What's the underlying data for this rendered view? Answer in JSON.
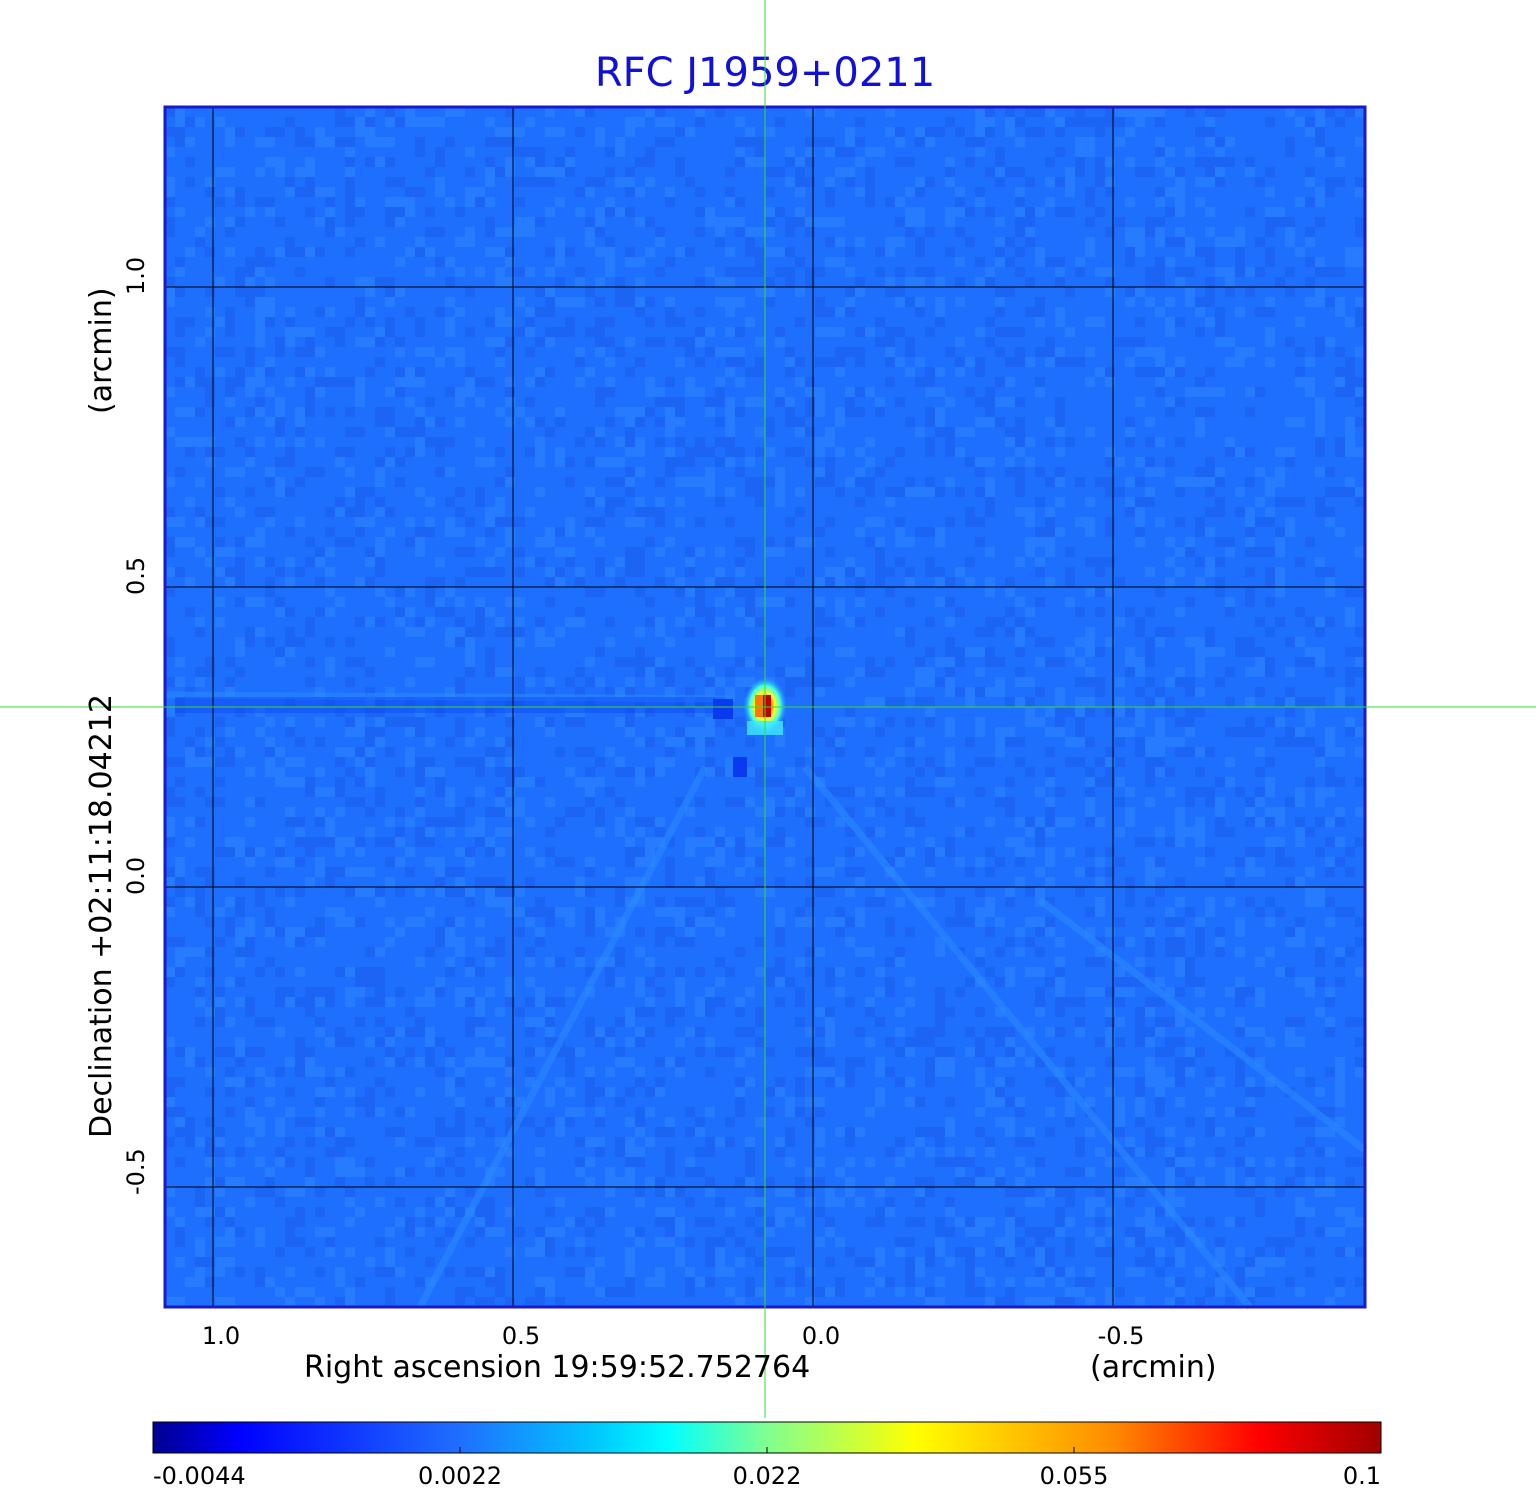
{
  "chart_data": {
    "type": "heatmap",
    "title": "RFC J1959+0211",
    "xlabel": "Right ascension  19:59:52.752764",
    "xunit": "(arcmin)",
    "ylabel": "Declination  +02:11:18.04212",
    "yunit": "(arcmin)",
    "x_ticks": [
      "1.0",
      "0.5",
      "0.0",
      "-0.5"
    ],
    "y_ticks": [
      "1.0",
      "0.5",
      "0.0",
      "-0.5"
    ],
    "x_tick_values": [
      1.0,
      0.5,
      0.0,
      -0.5
    ],
    "y_tick_values": [
      1.0,
      0.5,
      0.0,
      -0.5
    ],
    "xlim": [
      1.08,
      -0.92
    ],
    "ylim": [
      -0.7,
      1.3
    ],
    "grid": true,
    "crosshair": {
      "x": 0.08,
      "y": 0.3
    },
    "source_peak": {
      "x": 0.08,
      "y": 0.3,
      "value": 0.1
    },
    "colorbar": {
      "labels": [
        "-0.0044",
        "0.0022",
        "0.022",
        "0.055",
        "0.1"
      ],
      "colormap": "jet"
    },
    "colors": {
      "title": "#1010d8",
      "frame": "#1a1acc",
      "background_map": "#1f6fff",
      "crosshair": "#33dd33"
    }
  }
}
